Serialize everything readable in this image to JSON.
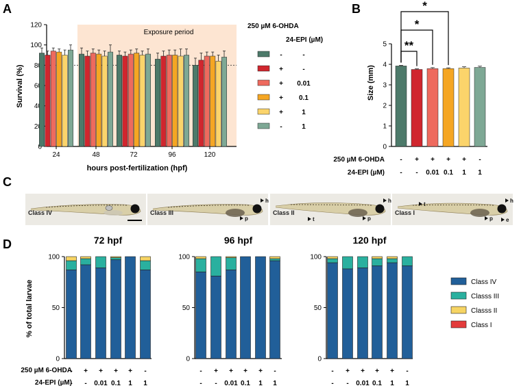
{
  "colors": {
    "g1": "#4d7a6a",
    "red": "#d0262e",
    "salmon": "#ee6a5e",
    "orange": "#f5a623",
    "yellow": "#fbd46b",
    "g2": "#7ea895",
    "class_iv": "#215f99",
    "class_iii": "#2ab09f",
    "class_ii": "#f6d463",
    "class_i": "#e33b3b",
    "exposure": "#fde5d2"
  },
  "panel_labels": [
    "A",
    "B",
    "C",
    "D"
  ],
  "treatments": {
    "ohda_label": "250 µM 6-OHDA",
    "epi_label": "24-EPI (µM)",
    "ohda": [
      "-",
      "+",
      "+",
      "+",
      "+",
      "-"
    ],
    "epi": [
      "-",
      "-",
      "0.01",
      "0.1",
      "1",
      "1"
    ]
  },
  "chart_data": [
    {
      "id": "A",
      "type": "bar",
      "xlabel": "hours post-fertilization (hpf)",
      "ylabel": "Survival (%)",
      "ylim": [
        0,
        120
      ],
      "yticks": [
        0,
        20,
        40,
        60,
        80,
        100,
        120
      ],
      "categories": [
        "24",
        "48",
        "72",
        "96",
        "120"
      ],
      "annotation": "Exposure period",
      "reference_line": 80,
      "series": [
        {
          "values": [
            92,
            91,
            90,
            86,
            80
          ],
          "errors": [
            5,
            6,
            4,
            6,
            7
          ]
        },
        {
          "values": [
            90,
            89,
            89,
            89,
            85
          ],
          "errors": [
            4,
            5,
            4,
            5,
            7
          ]
        },
        {
          "values": [
            94,
            92,
            91,
            90,
            89
          ],
          "errors": [
            3,
            4,
            4,
            5,
            4
          ]
        },
        {
          "values": [
            93,
            91,
            92,
            90,
            89
          ],
          "errors": [
            3,
            4,
            4,
            5,
            4
          ]
        },
        {
          "values": [
            90,
            89,
            90,
            89,
            84
          ],
          "errors": [
            5,
            5,
            4,
            7,
            6
          ]
        },
        {
          "values": [
            95,
            93,
            91,
            90,
            88
          ],
          "errors": [
            5,
            7,
            5,
            6,
            6
          ]
        }
      ],
      "legend_header_ohda": "250 µM 6-OHDA",
      "legend_header_epi": "24-EPI (µM)"
    },
    {
      "id": "B",
      "type": "bar",
      "ylabel": "Size (mm)",
      "ylim": [
        0,
        5
      ],
      "yticks": [
        0,
        1,
        2,
        3,
        4,
        5
      ],
      "values": [
        3.92,
        3.75,
        3.79,
        3.79,
        3.82,
        3.85
      ],
      "errors": [
        0.03,
        0.03,
        0.05,
        0.04,
        0.06,
        0.06
      ],
      "significance": [
        {
          "from": 0,
          "to": 1,
          "label": "**"
        },
        {
          "from": 0,
          "to": 2,
          "label": "*"
        },
        {
          "from": 0,
          "to": 3,
          "label": "*"
        }
      ]
    },
    {
      "id": "D",
      "type": "bar",
      "stacked": true,
      "ylabel": "% of total larvae",
      "ylim": [
        0,
        100
      ],
      "yticks": [
        0,
        50,
        100
      ],
      "legend": [
        "Class IV",
        "Classs III",
        "Classs II",
        "Class I"
      ],
      "panels": [
        {
          "title": "72 hpf",
          "class_iv": [
            87,
            92,
            89,
            97,
            100,
            87
          ],
          "class_iii": [
            9,
            6,
            11,
            2,
            0,
            9
          ],
          "class_ii": [
            4,
            2,
            0,
            1,
            0,
            4
          ],
          "class_i": [
            0,
            0,
            0,
            0,
            0,
            0
          ]
        },
        {
          "title": "96 hpf",
          "class_iv": [
            85,
            81,
            87,
            100,
            100,
            96
          ],
          "class_iii": [
            13,
            19,
            12,
            0,
            0,
            2
          ],
          "class_ii": [
            2,
            0,
            1,
            0,
            0,
            2
          ],
          "class_i": [
            0,
            0,
            0,
            0,
            0,
            0
          ]
        },
        {
          "title": "120 hpf",
          "class_iv": [
            94,
            88,
            89,
            91,
            94,
            91
          ],
          "class_iii": [
            4,
            12,
            11,
            7,
            4,
            9
          ],
          "class_ii": [
            2,
            0,
            0,
            2,
            2,
            0
          ],
          "class_i": [
            0,
            0,
            0,
            0,
            0,
            0
          ]
        }
      ]
    }
  ],
  "panel_c": {
    "images": [
      {
        "label": "Class IV",
        "marks": []
      },
      {
        "label": "Class III",
        "marks": [
          "h",
          "p"
        ]
      },
      {
        "label": "Class II",
        "marks": [
          "h",
          "t",
          "p"
        ]
      },
      {
        "label": "Class I",
        "marks": [
          "t",
          "h",
          "p",
          "e"
        ]
      }
    ]
  }
}
